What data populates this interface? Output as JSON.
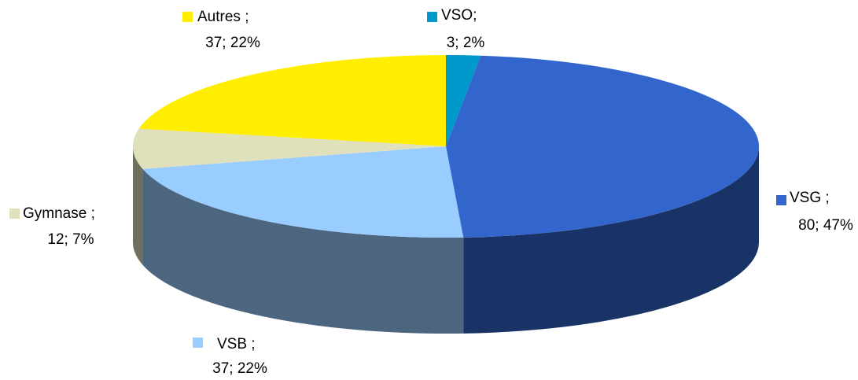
{
  "chart_data": {
    "type": "pie3d",
    "categories": [
      "VSO;",
      "VSG ;",
      "VSB ;",
      "Gymnase ;",
      "Autres ;"
    ],
    "values": [
      3,
      80,
      37,
      12,
      37
    ],
    "value_labels": [
      "3; 2%",
      "80; 47%",
      "37; 22%",
      "12; 7%",
      "37; 22%"
    ],
    "colors": [
      "#0099cc",
      "#3366cc",
      "#99ccff",
      "#e0e0bc",
      "#ffee00"
    ]
  }
}
